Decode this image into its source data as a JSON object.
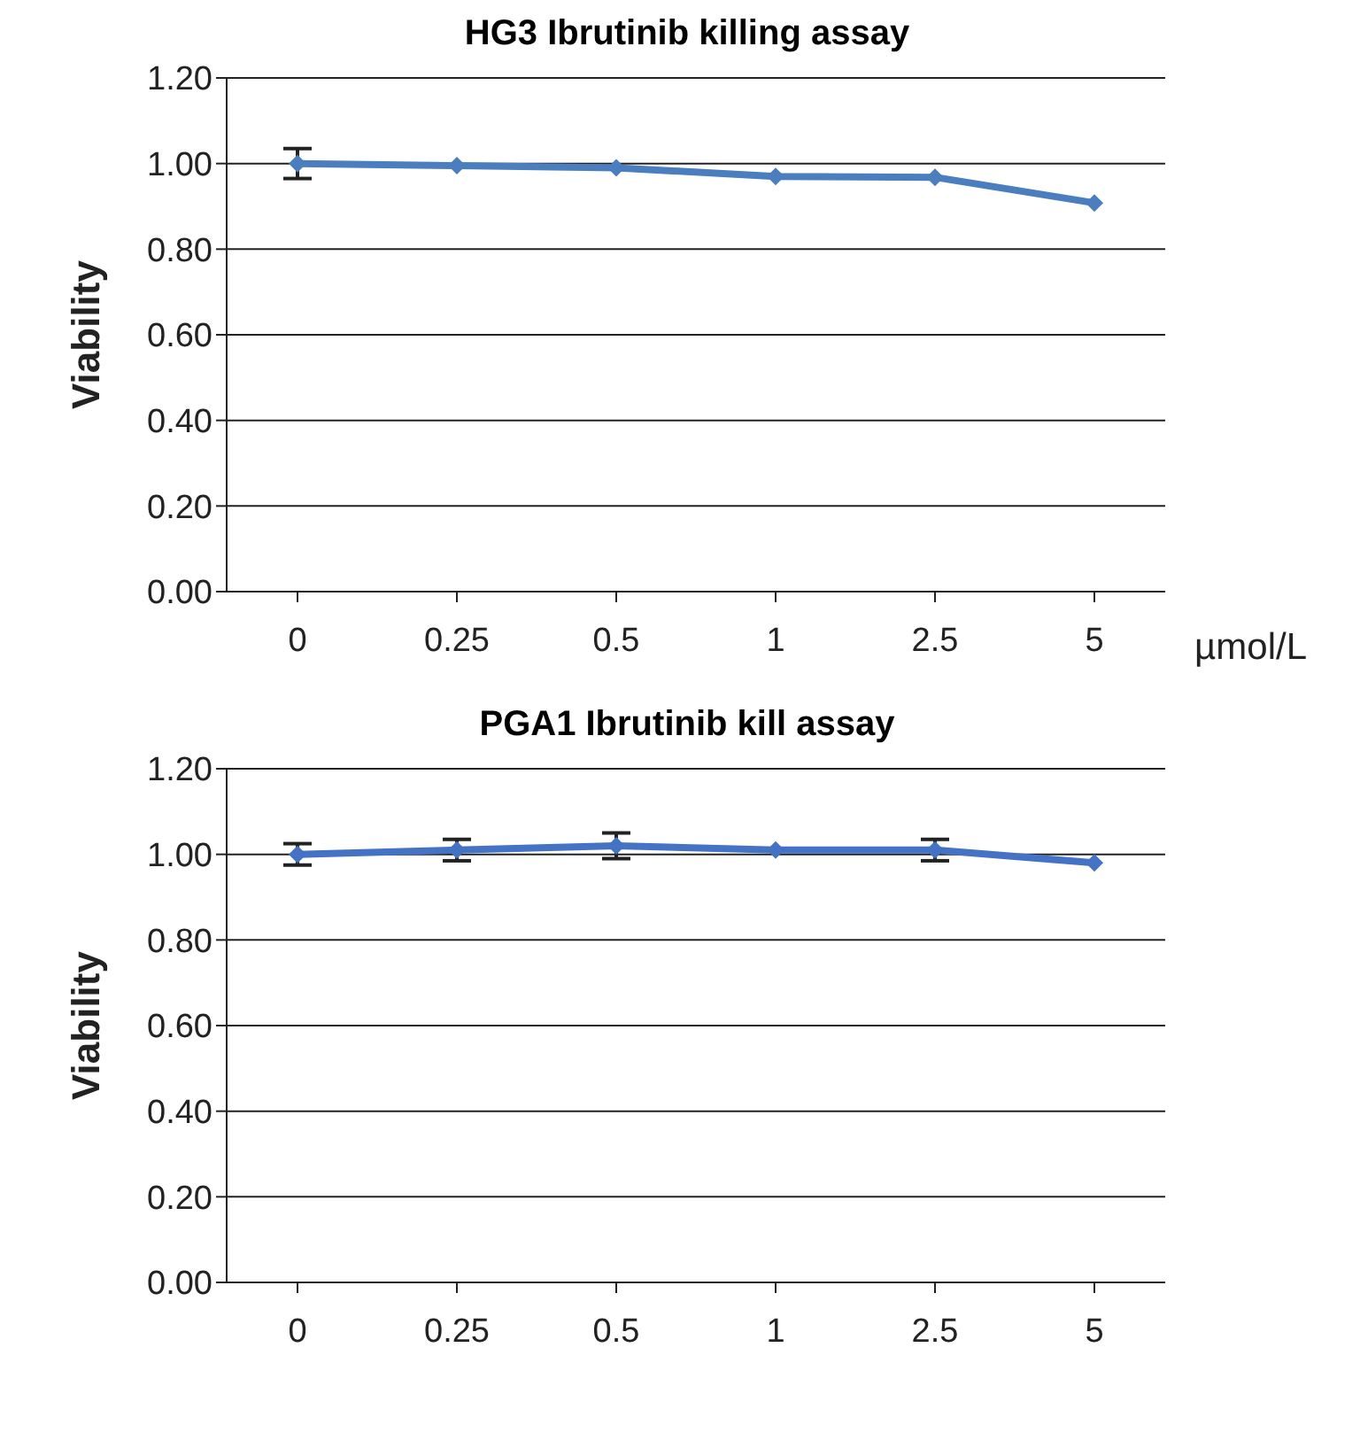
{
  "chart_data": [
    {
      "type": "line",
      "title": "HG3 Ibrutinib killing assay",
      "ylabel": "Viability",
      "xlabel": "µmol/L",
      "categories": [
        "0",
        "0.25",
        "0.5",
        "1",
        "2.5",
        "5"
      ],
      "series": [
        {
          "color": "#4a7ebf",
          "values": [
            1.0,
            0.995,
            0.99,
            0.97,
            0.968,
            0.908
          ],
          "errors": [
            0.035,
            null,
            null,
            null,
            null,
            null
          ]
        }
      ],
      "ylim": [
        0,
        1.2
      ],
      "yticks": [
        {
          "value": 0,
          "label": "0.00"
        },
        {
          "value": 0.2,
          "label": "0.20"
        },
        {
          "value": 0.4,
          "label": "0.40"
        },
        {
          "value": 0.6,
          "label": "0.60"
        },
        {
          "value": 0.8,
          "label": "0.80"
        },
        {
          "value": 1.0,
          "label": "1.00"
        },
        {
          "value": 1.2,
          "label": "1.20"
        }
      ],
      "grid": "y",
      "legend": false,
      "marker": "diamond",
      "line_style": "solid"
    },
    {
      "type": "line",
      "title": "PGA1 Ibrutinib kill assay",
      "ylabel": "Viability",
      "categories": [
        "0",
        "0.25",
        "0.5",
        "1",
        "2.5",
        "5"
      ],
      "series": [
        {
          "color": "#4472c4",
          "values": [
            1.0,
            1.01,
            1.02,
            1.01,
            1.01,
            0.98
          ],
          "errors": [
            0.025,
            0.025,
            0.03,
            null,
            0.025,
            null
          ]
        }
      ],
      "ylim": [
        0,
        1.2
      ],
      "yticks": [
        {
          "value": 0,
          "label": "0.00"
        },
        {
          "value": 0.2,
          "label": "0.20"
        },
        {
          "value": 0.4,
          "label": "0.40"
        },
        {
          "value": 0.6,
          "label": "0.60"
        },
        {
          "value": 0.8,
          "label": "0.80"
        },
        {
          "value": 1.0,
          "label": "1.00"
        },
        {
          "value": 1.2,
          "label": "1.20"
        }
      ],
      "grid": "y",
      "legend": false,
      "marker": "diamond",
      "line_style": "solid"
    }
  ]
}
